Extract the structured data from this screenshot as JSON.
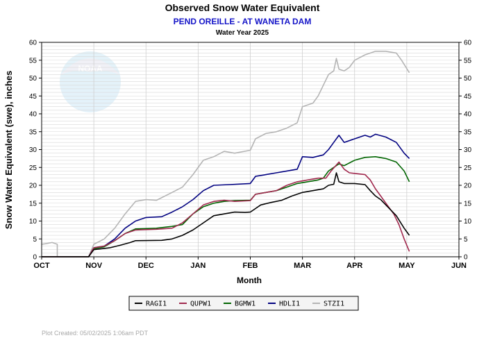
{
  "chart_data": {
    "type": "line",
    "title": "Observed Snow Water Equivalent",
    "subtitle": "PEND OREILLE - AT WANETA DAM",
    "subtitle2": "Water Year 2025",
    "xlabel": "Month",
    "ylabel": "Snow Water Equivalent (swe),  inches",
    "ylim": [
      0,
      60
    ],
    "yticks": [
      0,
      5,
      10,
      15,
      20,
      25,
      30,
      35,
      40,
      45,
      50,
      55,
      60
    ],
    "xlim": [
      0,
      8
    ],
    "months": [
      "OCT",
      "NOV",
      "DEC",
      "JAN",
      "FEB",
      "MAR",
      "APR",
      "MAY",
      "JUN"
    ],
    "grid": true,
    "legend_placement": "bottom",
    "footer": "Plot Created: 05/02/2025 1:06am PDT",
    "watermark_text": "NOAA",
    "series": [
      {
        "name": "RAGI1",
        "color": "#000000",
        "points": [
          [
            0,
            0
          ],
          [
            0.9,
            0
          ],
          [
            1.0,
            2.0
          ],
          [
            1.3,
            2.5
          ],
          [
            1.5,
            3.2
          ],
          [
            1.7,
            4.0
          ],
          [
            1.8,
            4.5
          ],
          [
            2.3,
            4.6
          ],
          [
            2.5,
            5.0
          ],
          [
            2.7,
            6.0
          ],
          [
            2.9,
            7.5
          ],
          [
            3.1,
            9.5
          ],
          [
            3.3,
            11.5
          ],
          [
            3.5,
            12.0
          ],
          [
            3.7,
            12.5
          ],
          [
            3.9,
            12.4
          ],
          [
            4.0,
            12.5
          ],
          [
            4.1,
            13.5
          ],
          [
            4.2,
            14.5
          ],
          [
            4.4,
            15.2
          ],
          [
            4.6,
            15.8
          ],
          [
            4.8,
            17.0
          ],
          [
            5.0,
            18.0
          ],
          [
            5.2,
            18.5
          ],
          [
            5.4,
            19.0
          ],
          [
            5.5,
            20.0
          ],
          [
            5.6,
            20.3
          ],
          [
            5.65,
            23.5
          ],
          [
            5.7,
            21.0
          ],
          [
            5.8,
            20.5
          ],
          [
            6.0,
            20.5
          ],
          [
            6.2,
            20.2
          ],
          [
            6.3,
            18.5
          ],
          [
            6.4,
            17.0
          ],
          [
            6.5,
            16.0
          ],
          [
            6.6,
            14.5
          ],
          [
            6.8,
            11.5
          ],
          [
            6.95,
            8.0
          ],
          [
            7.05,
            6.0
          ]
        ]
      },
      {
        "name": "QUPW1",
        "color": "#a0284d",
        "points": [
          [
            0,
            0
          ],
          [
            0.9,
            0
          ],
          [
            1.0,
            2.5
          ],
          [
            1.2,
            3.0
          ],
          [
            1.4,
            4.5
          ],
          [
            1.6,
            6.5
          ],
          [
            1.8,
            7.5
          ],
          [
            2.2,
            7.7
          ],
          [
            2.5,
            8.0
          ],
          [
            2.7,
            9.5
          ],
          [
            2.9,
            12.0
          ],
          [
            3.1,
            14.5
          ],
          [
            3.3,
            15.5
          ],
          [
            3.5,
            15.8
          ],
          [
            3.7,
            15.5
          ],
          [
            4.0,
            15.7
          ],
          [
            4.1,
            17.5
          ],
          [
            4.3,
            18.0
          ],
          [
            4.5,
            18.5
          ],
          [
            4.7,
            20.0
          ],
          [
            4.9,
            21.0
          ],
          [
            5.1,
            21.5
          ],
          [
            5.3,
            22.0
          ],
          [
            5.45,
            22.0
          ],
          [
            5.55,
            24.0
          ],
          [
            5.7,
            26.5
          ],
          [
            5.8,
            24.5
          ],
          [
            5.9,
            23.5
          ],
          [
            6.2,
            23.0
          ],
          [
            6.3,
            21.5
          ],
          [
            6.4,
            19.0
          ],
          [
            6.5,
            17.0
          ],
          [
            6.6,
            15.0
          ],
          [
            6.75,
            12.0
          ],
          [
            6.85,
            9.0
          ],
          [
            6.95,
            5.0
          ],
          [
            7.05,
            1.5
          ]
        ]
      },
      {
        "name": "BGMW1",
        "color": "#006400",
        "points": [
          [
            0,
            0
          ],
          [
            0.9,
            0
          ],
          [
            1.0,
            2.3
          ],
          [
            1.2,
            2.8
          ],
          [
            1.4,
            4.5
          ],
          [
            1.6,
            6.5
          ],
          [
            1.8,
            7.8
          ],
          [
            2.2,
            8.0
          ],
          [
            2.5,
            8.5
          ],
          [
            2.7,
            9.0
          ],
          [
            2.9,
            12.0
          ],
          [
            3.1,
            14.0
          ],
          [
            3.3,
            15.0
          ],
          [
            3.5,
            15.5
          ],
          [
            3.7,
            15.7
          ],
          [
            4.0,
            15.8
          ],
          [
            4.1,
            17.5
          ],
          [
            4.3,
            18.0
          ],
          [
            4.5,
            18.5
          ],
          [
            4.7,
            19.5
          ],
          [
            4.9,
            20.5
          ],
          [
            5.1,
            21.0
          ],
          [
            5.3,
            21.5
          ],
          [
            5.4,
            22.0
          ],
          [
            5.5,
            24.0
          ],
          [
            5.7,
            26.0
          ],
          [
            5.8,
            25.5
          ],
          [
            6.0,
            27.0
          ],
          [
            6.2,
            27.8
          ],
          [
            6.4,
            28.0
          ],
          [
            6.6,
            27.5
          ],
          [
            6.8,
            26.5
          ],
          [
            6.95,
            24.0
          ],
          [
            7.05,
            21.0
          ]
        ]
      },
      {
        "name": "HDLI1",
        "color": "#000080",
        "points": [
          [
            0,
            0
          ],
          [
            0.9,
            0
          ],
          [
            1.0,
            2.5
          ],
          [
            1.2,
            3.0
          ],
          [
            1.4,
            5.0
          ],
          [
            1.6,
            8.0
          ],
          [
            1.8,
            10.0
          ],
          [
            2.0,
            11.0
          ],
          [
            2.3,
            11.2
          ],
          [
            2.5,
            12.5
          ],
          [
            2.7,
            14.0
          ],
          [
            2.9,
            16.0
          ],
          [
            3.1,
            18.5
          ],
          [
            3.3,
            20.0
          ],
          [
            3.6,
            20.2
          ],
          [
            4.0,
            20.5
          ],
          [
            4.1,
            22.5
          ],
          [
            4.3,
            23.0
          ],
          [
            4.5,
            23.5
          ],
          [
            4.7,
            24.0
          ],
          [
            4.9,
            24.5
          ],
          [
            5.0,
            28.0
          ],
          [
            5.2,
            27.8
          ],
          [
            5.4,
            28.5
          ],
          [
            5.5,
            30.0
          ],
          [
            5.6,
            32.0
          ],
          [
            5.7,
            34.0
          ],
          [
            5.8,
            32.0
          ],
          [
            6.0,
            33.0
          ],
          [
            6.2,
            34.0
          ],
          [
            6.3,
            33.5
          ],
          [
            6.4,
            34.3
          ],
          [
            6.6,
            33.5
          ],
          [
            6.8,
            32.0
          ],
          [
            6.95,
            29.0
          ],
          [
            7.05,
            27.5
          ]
        ]
      },
      {
        "name": "STZI1",
        "color": "#b4b4b4",
        "points": [
          [
            0,
            3.5
          ],
          [
            0.1,
            3.7
          ],
          [
            0.2,
            4.0
          ],
          [
            0.3,
            3.5
          ],
          [
            0.3,
            0
          ],
          [
            0.9,
            0
          ],
          [
            1.0,
            3.5
          ],
          [
            1.2,
            5.0
          ],
          [
            1.4,
            8.0
          ],
          [
            1.6,
            12.0
          ],
          [
            1.8,
            15.5
          ],
          [
            2.0,
            16.0
          ],
          [
            2.2,
            15.8
          ],
          [
            2.5,
            18.0
          ],
          [
            2.7,
            19.5
          ],
          [
            2.9,
            23.0
          ],
          [
            3.1,
            27.0
          ],
          [
            3.3,
            28.0
          ],
          [
            3.5,
            29.5
          ],
          [
            3.7,
            29.0
          ],
          [
            4.0,
            29.8
          ],
          [
            4.1,
            33.0
          ],
          [
            4.3,
            34.5
          ],
          [
            4.5,
            35.0
          ],
          [
            4.7,
            36.0
          ],
          [
            4.9,
            37.5
          ],
          [
            5.0,
            42.0
          ],
          [
            5.2,
            43.0
          ],
          [
            5.3,
            45.0
          ],
          [
            5.4,
            48.0
          ],
          [
            5.5,
            51.0
          ],
          [
            5.6,
            52.0
          ],
          [
            5.65,
            55.5
          ],
          [
            5.7,
            52.5
          ],
          [
            5.8,
            52.0
          ],
          [
            5.9,
            53.0
          ],
          [
            6.0,
            55.0
          ],
          [
            6.2,
            56.5
          ],
          [
            6.4,
            57.5
          ],
          [
            6.6,
            57.5
          ],
          [
            6.8,
            57.0
          ],
          [
            6.9,
            55.0
          ],
          [
            7.05,
            51.5
          ]
        ]
      }
    ]
  }
}
